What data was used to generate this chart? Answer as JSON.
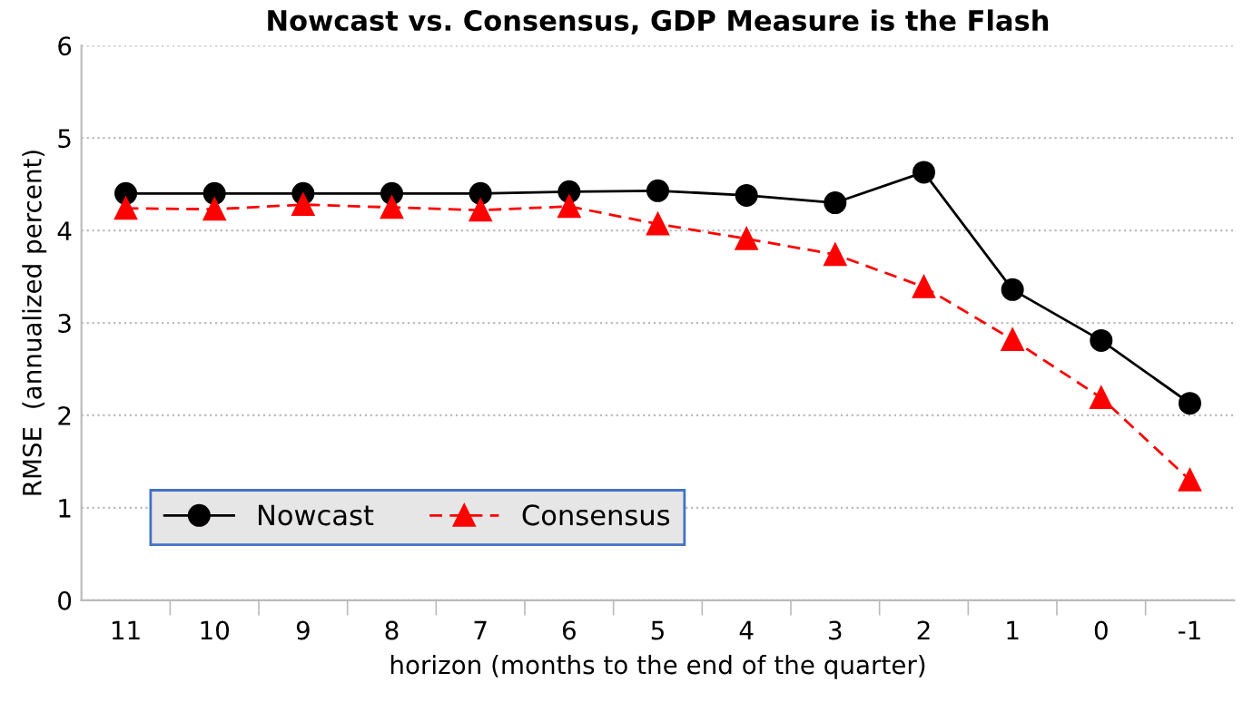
{
  "chart_data": {
    "type": "line",
    "title": "Nowcast vs. Consensus, GDP Measure is the Flash",
    "xlabel": "horizon (months to the end of the quarter)",
    "ylabel": "RMSE  (annualized percent)",
    "categories": [
      "11",
      "10",
      "9",
      "8",
      "7",
      "6",
      "5",
      "4",
      "3",
      "2",
      "1",
      "0",
      "-1"
    ],
    "series": [
      {
        "name": "Nowcast",
        "color": "#000000",
        "marker": "circle",
        "line_style": "solid",
        "values": [
          4.4,
          4.4,
          4.4,
          4.4,
          4.4,
          4.42,
          4.43,
          4.38,
          4.3,
          4.63,
          3.36,
          2.81,
          2.13
        ]
      },
      {
        "name": "Consensus",
        "color": "#ff0000",
        "marker": "triangle",
        "line_style": "dashed",
        "values": [
          4.24,
          4.23,
          4.28,
          4.25,
          4.22,
          4.26,
          4.07,
          3.91,
          3.74,
          3.39,
          2.82,
          2.19,
          1.3
        ]
      }
    ],
    "ylim": [
      0,
      6
    ],
    "yticks": [
      0,
      1,
      2,
      3,
      4,
      5,
      6
    ],
    "grid": "y",
    "legend": "bottom left"
  }
}
